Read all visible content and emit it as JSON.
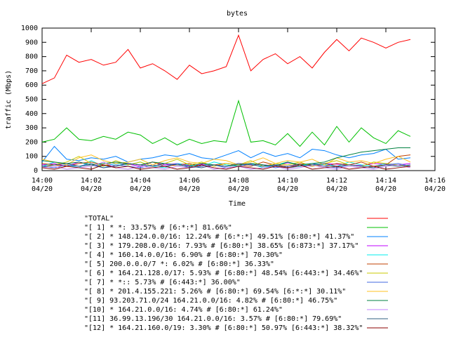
{
  "chart_data": {
    "type": "line",
    "title": "bytes",
    "x_label": "Time",
    "y_label": "traffic (Mbps)",
    "x": [
      0,
      0.5,
      1,
      1.5,
      2,
      2.5,
      3,
      3.5,
      4,
      4.5,
      5,
      5.5,
      6,
      6.5,
      7,
      7.5,
      8,
      8.5,
      9,
      9.5,
      10,
      10.5,
      11,
      11.5,
      12,
      12.5,
      13,
      13.5,
      14,
      14.5,
      15
    ],
    "xlim": [
      0,
      16
    ],
    "xticks": [
      {
        "value": 0,
        "label": "14:00\n04/20"
      },
      {
        "value": 2,
        "label": "14:02\n04/20"
      },
      {
        "value": 4,
        "label": "14:04\n04/20"
      },
      {
        "value": 6,
        "label": "14:06\n04/20"
      },
      {
        "value": 8,
        "label": "14:08\n04/20"
      },
      {
        "value": 10,
        "label": "14:10\n04/20"
      },
      {
        "value": 12,
        "label": "14:12\n04/20"
      },
      {
        "value": 14,
        "label": "14:14\n04/20"
      },
      {
        "value": 16,
        "label": "14:16\n04/20"
      }
    ],
    "ylim": [
      0,
      1000
    ],
    "yticks": [
      0,
      100,
      200,
      300,
      400,
      500,
      600,
      700,
      800,
      900,
      1000
    ],
    "grid": false,
    "series": [
      {
        "name": "\"TOTAL\"",
        "color": "#ff0000",
        "values": [
          610,
          650,
          810,
          760,
          780,
          740,
          760,
          850,
          720,
          750,
          700,
          640,
          740,
          680,
          700,
          730,
          950,
          700,
          780,
          820,
          750,
          800,
          720,
          830,
          920,
          840,
          930,
          900,
          860,
          900,
          920
        ]
      },
      {
        "name": "\"[ 1] * *: 33.57% # [6:*:*] 81.66%\"",
        "color": "#00c000",
        "values": [
          200,
          220,
          300,
          220,
          210,
          240,
          220,
          270,
          250,
          190,
          230,
          180,
          220,
          190,
          210,
          200,
          490,
          200,
          210,
          180,
          260,
          170,
          270,
          180,
          310,
          200,
          300,
          230,
          190,
          280,
          240
        ]
      },
      {
        "name": "\"[ 2] * 148.124.0.0/16: 12.24% # [6:*:*] 49.51% [6:80:*] 41.37%\"",
        "color": "#0080ff",
        "values": [
          60,
          170,
          80,
          70,
          90,
          80,
          100,
          60,
          80,
          90,
          110,
          100,
          120,
          90,
          80,
          110,
          140,
          90,
          130,
          100,
          120,
          90,
          150,
          140,
          110,
          90,
          110,
          120,
          150,
          80,
          90
        ]
      },
      {
        "name": "\"[ 3] * 179.208.0.0/16: 7.93% # [6:80:*] 38.65% [6:873:*] 37.17%\"",
        "color": "#c000ff",
        "values": [
          40,
          50,
          30,
          60,
          40,
          35,
          50,
          45,
          30,
          60,
          40,
          50,
          35,
          45,
          40,
          30,
          50,
          45,
          40,
          35,
          55,
          40,
          30,
          50,
          45,
          40,
          35,
          50,
          45,
          40,
          50
        ]
      },
      {
        "name": "\"[ 4] * 160.14.0.0/16: 6.90% # [6:80:*] 70.30%\"",
        "color": "#00eeee",
        "values": [
          30,
          60,
          40,
          20,
          70,
          30,
          50,
          40,
          60,
          30,
          20,
          50,
          40,
          30,
          60,
          40,
          30,
          50,
          20,
          40,
          60,
          30,
          50,
          40,
          30,
          60,
          40,
          30,
          50,
          40,
          30
        ]
      },
      {
        "name": "\"[ 5] 200.0.0.0/7 *: 6.02% # [6:80:*] 36.33%\"",
        "color": "#c04000",
        "values": [
          50,
          40,
          30,
          50,
          60,
          40,
          30,
          50,
          40,
          60,
          30,
          40,
          50,
          30,
          40,
          50,
          40,
          30,
          60,
          40,
          30,
          50,
          40,
          30,
          50,
          40,
          60,
          30,
          40,
          100,
          110
        ]
      },
      {
        "name": "\"[ 6] * 164.21.128.0/17: 5.93% # [6:80:*] 48.54% [6:443:*] 34.46%\"",
        "color": "#c8c800",
        "values": [
          20,
          40,
          60,
          100,
          50,
          30,
          70,
          40,
          60,
          30,
          50,
          80,
          40,
          60,
          30,
          50,
          40,
          70,
          30,
          50,
          40,
          60,
          30,
          50,
          70,
          40,
          30,
          60,
          50,
          40,
          30
        ]
      },
      {
        "name": "\"[ 7] * *:: 5.73% # [6:443:*] 36.00%\"",
        "color": "#4169e1",
        "values": [
          30,
          20,
          40,
          30,
          50,
          20,
          40,
          30,
          20,
          40,
          30,
          50,
          20,
          30,
          40,
          20,
          30,
          50,
          40,
          20,
          30,
          40,
          50,
          30,
          20,
          40,
          30,
          20,
          40,
          50,
          30
        ]
      },
      {
        "name": "\"[ 8] * 201.4.155.221: 5.26% # [6:80:*] 69.54% [6:*:*] 30.11%\"",
        "color": "#ffc020",
        "values": [
          80,
          60,
          40,
          90,
          110,
          70,
          50,
          60,
          80,
          40,
          70,
          90,
          60,
          50,
          80,
          70,
          40,
          60,
          90,
          50,
          70,
          60,
          80,
          40,
          90,
          60,
          70,
          50,
          80,
          100,
          60
        ]
      },
      {
        "name": "\"[ 9] 93.203.71.0/24 164.21.0.0/16: 4.82% # [6:80:*] 46.75%\"",
        "color": "#008040",
        "values": [
          70,
          60,
          50,
          60,
          40,
          50,
          60,
          50,
          40,
          60,
          50,
          40,
          30,
          50,
          40,
          30,
          40,
          50,
          40,
          30,
          60,
          40,
          50,
          60,
          90,
          110,
          130,
          140,
          150,
          160,
          160
        ]
      },
      {
        "name": "\"[10] * 164.21.0.0/16: 4.74% # [6:80:*] 61.24%\"",
        "color": "#c080ff",
        "values": [
          20,
          30,
          10,
          20,
          30,
          60,
          20,
          10,
          30,
          20,
          10,
          30,
          20,
          40,
          10,
          20,
          30,
          10,
          20,
          30,
          10,
          20,
          40,
          20,
          10,
          30,
          20,
          10,
          30,
          40,
          20
        ]
      },
      {
        "name": "\"[11] 36.99.13.196/30 164.21.0.0/16: 3.57% # [6:80:*] 79.69%\"",
        "color": "#306080",
        "values": [
          30,
          40,
          50,
          30,
          40,
          20,
          30,
          50,
          40,
          30,
          50,
          40,
          30,
          20,
          40,
          30,
          50,
          40,
          30,
          40,
          20,
          30,
          40,
          50,
          30,
          40,
          30,
          20,
          40,
          30,
          40
        ]
      },
      {
        "name": "\"[12] * 164.21.160.0/19: 3.30% # [6:80:*] 50.97% [6:443:*] 38.32%\"",
        "color": "#8b0000",
        "values": [
          20,
          10,
          30,
          20,
          10,
          40,
          20,
          30,
          10,
          20,
          30,
          10,
          20,
          40,
          20,
          10,
          30,
          20,
          10,
          30,
          20,
          40,
          10,
          20,
          30,
          10,
          20,
          30,
          10,
          20,
          30
        ]
      }
    ]
  }
}
